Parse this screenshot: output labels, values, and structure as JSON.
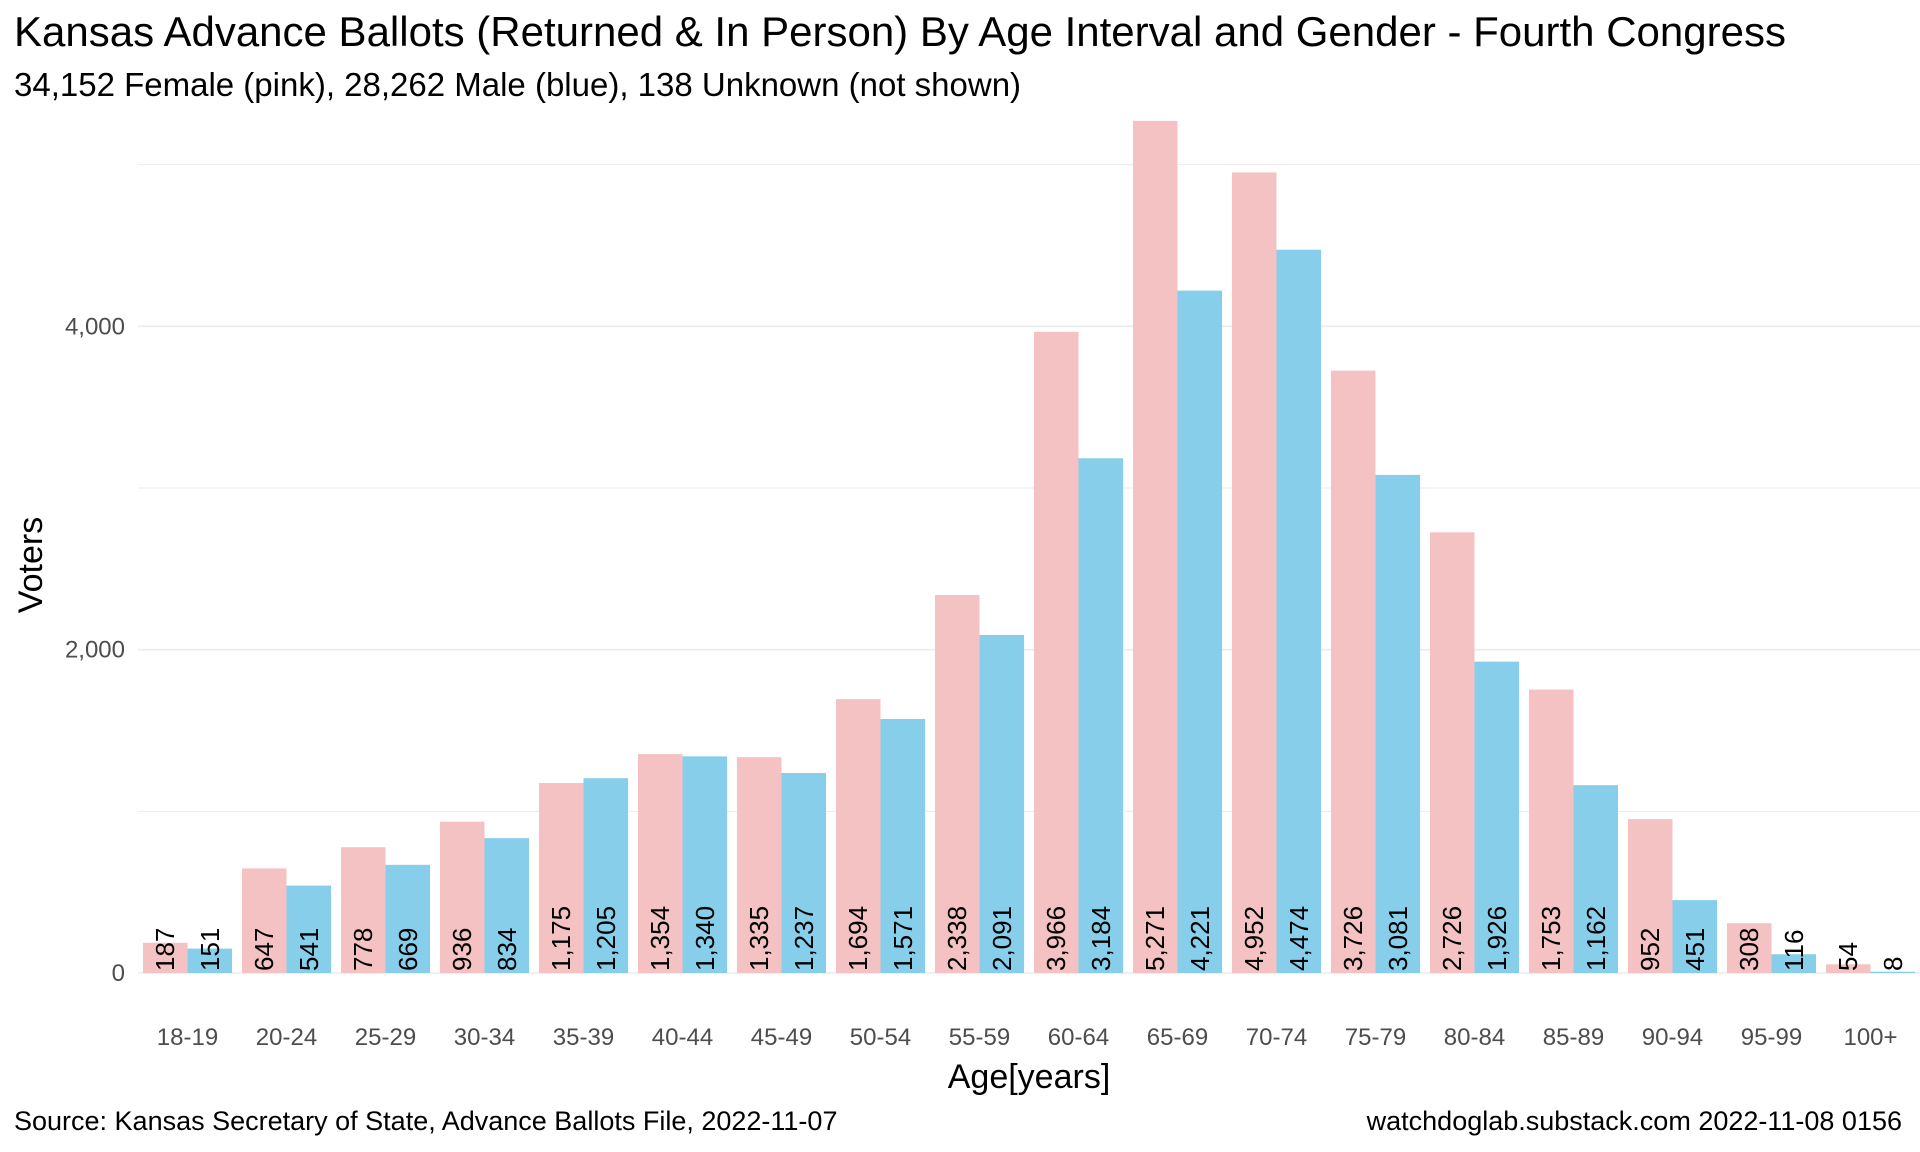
{
  "title": "Kansas Advance Ballots (Returned & In Person) By Age Interval and Gender - Fourth Congress",
  "subtitle": "34,152 Female (pink),  28,262 Male (blue),  138 Unknown (not shown)",
  "footer": {
    "source": "Source:  Kansas Secretary of State, Advance Ballots File,  2022-11-07",
    "credit": "watchdoglab.substack.com 2022-11-08 0156"
  },
  "colors": {
    "female": "#F4C2C2",
    "male": "#87CEEB",
    "grid": "#ebebeb"
  },
  "chart_data": {
    "type": "bar",
    "xlabel": "Age[years]",
    "ylabel": "Voters",
    "ylim": [
      0,
      5400
    ],
    "yticks": [
      0,
      2000,
      4000
    ],
    "ytick_labels": [
      "0",
      "2,000",
      "4,000"
    ],
    "grid": true,
    "categories": [
      "18-19",
      "20-24",
      "25-29",
      "30-34",
      "35-39",
      "40-44",
      "45-49",
      "50-54",
      "55-59",
      "60-64",
      "65-69",
      "70-74",
      "75-79",
      "80-84",
      "85-89",
      "90-94",
      "95-99",
      "100+"
    ],
    "series": [
      {
        "values": [
          187,
          647,
          778,
          936,
          1175,
          1354,
          1335,
          1694,
          2338,
          3966,
          5271,
          4952,
          3726,
          2726,
          1753,
          952,
          308,
          54
        ],
        "labels": [
          "187",
          "647",
          "778",
          "936",
          "1,175",
          "1,354",
          "1,335",
          "1,694",
          "2,338",
          "3,966",
          "5,271",
          "4,952",
          "3,726",
          "2,726",
          "1,753",
          "952",
          "308",
          "54"
        ]
      },
      {
        "values": [
          151,
          541,
          669,
          834,
          1205,
          1340,
          1237,
          1571,
          2091,
          3184,
          4221,
          4474,
          3081,
          1926,
          1162,
          451,
          116,
          8
        ],
        "labels": [
          "151",
          "541",
          "669",
          "834",
          "1,205",
          "1,340",
          "1,237",
          "1,571",
          "2,091",
          "3,184",
          "4,221",
          "4,474",
          "3,081",
          "1,926",
          "1,162",
          "451",
          "116",
          "8"
        ]
      }
    ]
  }
}
